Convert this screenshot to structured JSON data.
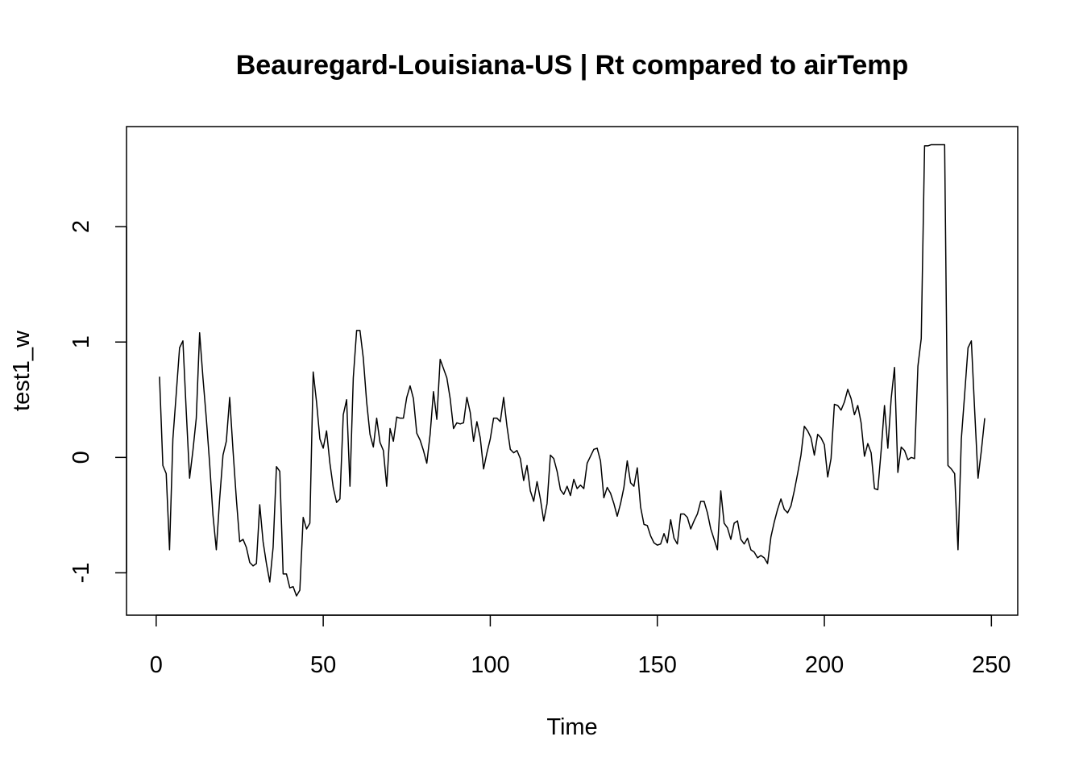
{
  "chart_data": {
    "type": "line",
    "title": "Beauregard-Louisiana-US | Rt compared to airTemp",
    "x_label": "Time",
    "y_label": "test1_w",
    "x": [
      1,
      2,
      3,
      4,
      5,
      6,
      7,
      8,
      9,
      10,
      11,
      12,
      13,
      14,
      15,
      16,
      17,
      18,
      19,
      20,
      21,
      22,
      23,
      24,
      25,
      26,
      27,
      28,
      29,
      30,
      31,
      32,
      33,
      34,
      35,
      36,
      37,
      38,
      39,
      40,
      41,
      42,
      43,
      44,
      45,
      46,
      47,
      48,
      49,
      50,
      51,
      52,
      53,
      54,
      55,
      56,
      57,
      58,
      59,
      60,
      61,
      62,
      63,
      64,
      65,
      66,
      67,
      68,
      69,
      70,
      71,
      72,
      73,
      74,
      75,
      76,
      77,
      78,
      79,
      80,
      81,
      82,
      83,
      84,
      85,
      86,
      87,
      88,
      89,
      90,
      91,
      92,
      93,
      94,
      95,
      96,
      97,
      98,
      99,
      100,
      101,
      102,
      103,
      104,
      105,
      106,
      107,
      108,
      109,
      110,
      111,
      112,
      113,
      114,
      115,
      116,
      117,
      118,
      119,
      120,
      121,
      122,
      123,
      124,
      125,
      126,
      127,
      128,
      129,
      130,
      131,
      132,
      133,
      134,
      135,
      136,
      137,
      138,
      139,
      140,
      141,
      142,
      143,
      144,
      145,
      146,
      147,
      148,
      149,
      150,
      151,
      152,
      153,
      154,
      155,
      156,
      157,
      158,
      159,
      160,
      161,
      162,
      163,
      164,
      165,
      166,
      167,
      168,
      169,
      170,
      171,
      172,
      173,
      174,
      175,
      176,
      177,
      178,
      179,
      180,
      181,
      182,
      183,
      184,
      185,
      186,
      187,
      188,
      189,
      190,
      191,
      192,
      193,
      194,
      195,
      196,
      197,
      198,
      199,
      200,
      201,
      202,
      203,
      204,
      205,
      206,
      207,
      208,
      209,
      210,
      211,
      212,
      213,
      214,
      215,
      216,
      217,
      218,
      219,
      220,
      221,
      222,
      223,
      224,
      225,
      226,
      227,
      228,
      229,
      230,
      231,
      232,
      233,
      234,
      235,
      236,
      237,
      238,
      239,
      240,
      241,
      242,
      243,
      244,
      245,
      246,
      247,
      248
    ],
    "series": [
      {
        "name": "test1_w",
        "color": "#000000",
        "values": [
          0.7,
          -0.07,
          -0.14,
          -0.8,
          0.16,
          0.55,
          0.95,
          1.01,
          0.4,
          -0.18,
          0.06,
          0.34,
          1.08,
          0.69,
          0.34,
          -0.05,
          -0.5,
          -0.8,
          -0.36,
          0.02,
          0.14,
          0.52,
          0.06,
          -0.36,
          -0.73,
          -0.71,
          -0.78,
          -0.91,
          -0.94,
          -0.92,
          -0.41,
          -0.73,
          -0.92,
          -1.08,
          -0.78,
          -0.08,
          -0.12,
          -1.01,
          -1.01,
          -1.13,
          -1.12,
          -1.2,
          -1.15,
          -0.52,
          -0.62,
          -0.57,
          0.74,
          0.48,
          0.16,
          0.08,
          0.23,
          -0.05,
          -0.26,
          -0.39,
          -0.36,
          0.37,
          0.5,
          -0.25,
          0.69,
          1.1,
          1.1,
          0.86,
          0.48,
          0.2,
          0.09,
          0.34,
          0.13,
          0.06,
          -0.25,
          0.25,
          0.14,
          0.35,
          0.34,
          0.34,
          0.52,
          0.62,
          0.51,
          0.21,
          0.15,
          0.06,
          -0.05,
          0.2,
          0.57,
          0.33,
          0.85,
          0.77,
          0.69,
          0.51,
          0.25,
          0.3,
          0.29,
          0.3,
          0.52,
          0.39,
          0.14,
          0.31,
          0.17,
          -0.1,
          0.04,
          0.16,
          0.34,
          0.34,
          0.31,
          0.52,
          0.27,
          0.07,
          0.04,
          0.06,
          -0.01,
          -0.2,
          -0.07,
          -0.29,
          -0.38,
          -0.21,
          -0.36,
          -0.55,
          -0.4,
          0.02,
          -0.01,
          -0.12,
          -0.28,
          -0.32,
          -0.25,
          -0.33,
          -0.19,
          -0.27,
          -0.24,
          -0.27,
          -0.05,
          0.01,
          0.07,
          0.08,
          -0.03,
          -0.35,
          -0.26,
          -0.31,
          -0.4,
          -0.51,
          -0.4,
          -0.26,
          -0.03,
          -0.22,
          -0.25,
          -0.09,
          -0.43,
          -0.58,
          -0.59,
          -0.68,
          -0.74,
          -0.76,
          -0.75,
          -0.66,
          -0.74,
          -0.54,
          -0.7,
          -0.75,
          -0.49,
          -0.49,
          -0.52,
          -0.62,
          -0.55,
          -0.49,
          -0.38,
          -0.38,
          -0.48,
          -0.62,
          -0.71,
          -0.8,
          -0.29,
          -0.57,
          -0.61,
          -0.71,
          -0.57,
          -0.55,
          -0.71,
          -0.75,
          -0.7,
          -0.8,
          -0.82,
          -0.87,
          -0.85,
          -0.87,
          -0.92,
          -0.69,
          -0.56,
          -0.45,
          -0.36,
          -0.45,
          -0.48,
          -0.42,
          -0.29,
          -0.14,
          0.02,
          0.27,
          0.23,
          0.17,
          0.02,
          0.2,
          0.17,
          0.11,
          -0.17,
          -0.01,
          0.46,
          0.45,
          0.41,
          0.48,
          0.59,
          0.51,
          0.37,
          0.45,
          0.3,
          0.01,
          0.12,
          0.04,
          -0.27,
          -0.28,
          0.06,
          0.45,
          0.08,
          0.51,
          0.78,
          -0.13,
          0.09,
          0.06,
          -0.02,
          0.0,
          -0.01,
          0.79,
          1.03,
          2.7,
          2.7,
          2.71,
          2.71,
          2.71,
          2.71,
          2.71,
          -0.07,
          -0.1,
          -0.14,
          -0.8,
          0.16,
          0.55,
          0.95,
          1.01,
          0.4,
          -0.18,
          0.06,
          0.34
        ]
      }
    ],
    "xlim": [
      -8.88,
      257.88
    ],
    "xticks": [
      0,
      50,
      100,
      150,
      200,
      250
    ],
    "ylim": [
      -1.367,
      2.867
    ],
    "yticks": [
      -1,
      0,
      1,
      2
    ],
    "grid": false
  }
}
